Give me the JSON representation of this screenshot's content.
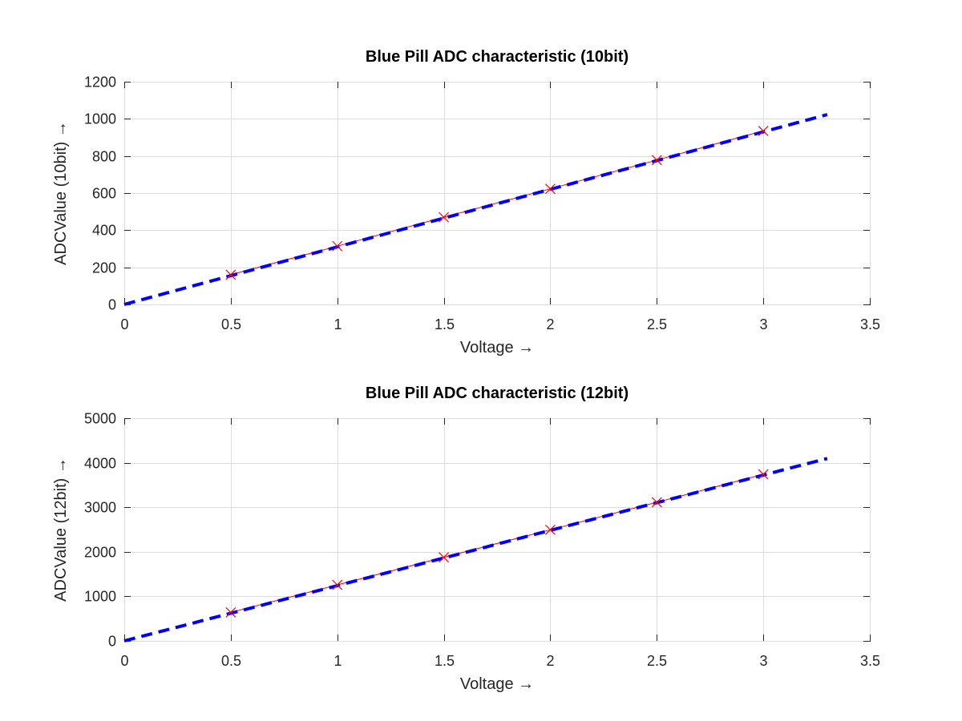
{
  "chart_data": [
    {
      "type": "line",
      "title": "Blue Pill ADC characteristic (10bit)",
      "xlabel": "Voltage →",
      "ylabel": "ADCValue (10bit) →",
      "xlim": [
        0,
        3.5
      ],
      "ylim": [
        0,
        1200
      ],
      "xticks": [
        "0",
        "0.5",
        "1",
        "1.5",
        "2",
        "2.5",
        "3",
        "3.5"
      ],
      "yticks": [
        "0",
        "200",
        "400",
        "600",
        "800",
        "1000",
        "1200"
      ],
      "grid": true,
      "series": [
        {
          "style": "measured",
          "color": "#ff0000",
          "marker": "x",
          "x": [
            0.5,
            1.0,
            1.5,
            2.0,
            2.5,
            3.0
          ],
          "y": [
            160,
            314,
            470,
            623,
            778,
            935
          ]
        },
        {
          "style": "fit",
          "color": "#0000ff",
          "line": "dashed",
          "x": [
            0,
            3.3
          ],
          "y": [
            0,
            1023
          ]
        }
      ]
    },
    {
      "type": "line",
      "title": "Blue Pill ADC characteristic (12bit)",
      "xlabel": "Voltage →",
      "ylabel": "ADCValue (12bit) →",
      "xlim": [
        0,
        3.5
      ],
      "ylim": [
        0,
        5000
      ],
      "xticks": [
        "0",
        "0.5",
        "1",
        "1.5",
        "2",
        "2.5",
        "3",
        "3.5"
      ],
      "yticks": [
        "0",
        "1000",
        "2000",
        "3000",
        "4000",
        "5000"
      ],
      "grid": true,
      "series": [
        {
          "style": "measured",
          "color": "#ff0000",
          "marker": "x",
          "x": [
            0.5,
            1.0,
            1.5,
            2.0,
            2.5,
            3.0
          ],
          "y": [
            640,
            1257,
            1877,
            2494,
            3112,
            3740
          ]
        },
        {
          "style": "fit",
          "color": "#0000ff",
          "line": "dashed",
          "x": [
            0,
            3.3
          ],
          "y": [
            0,
            4095
          ]
        }
      ]
    }
  ]
}
